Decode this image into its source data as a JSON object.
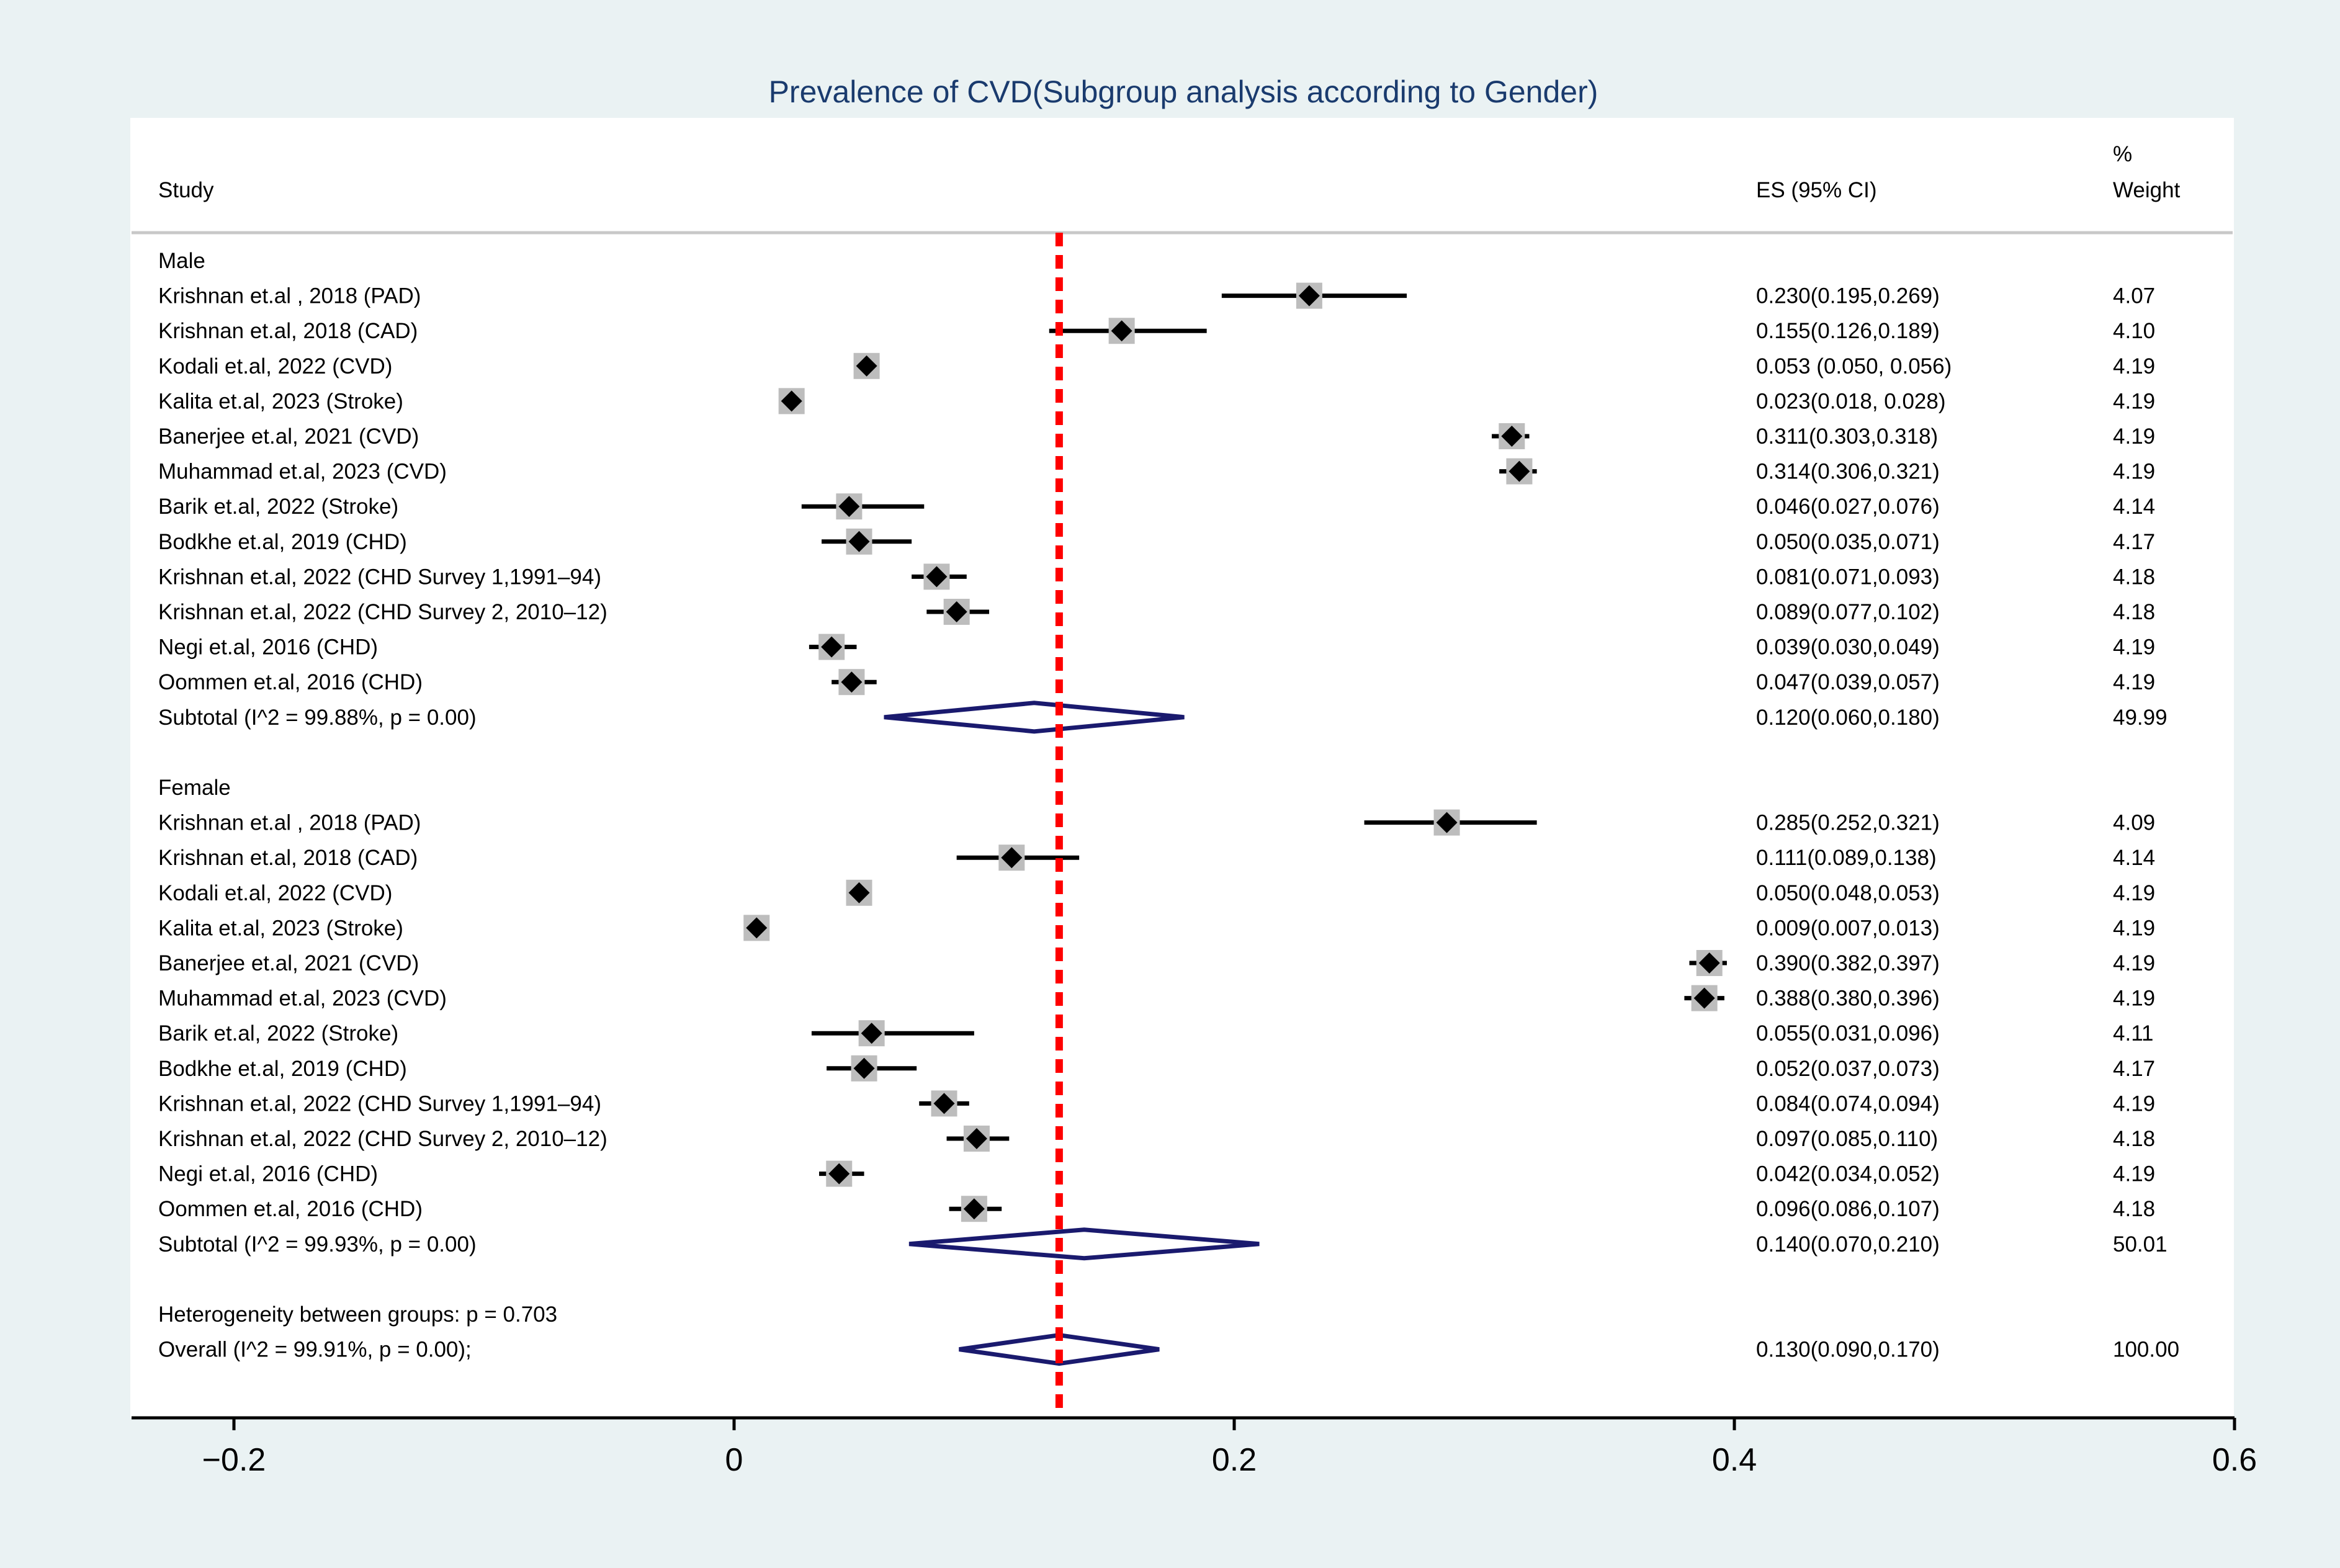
{
  "chart_data": {
    "type": "forest",
    "title": "Prevalence of CVD(Subgroup analysis according to Gender)",
    "headers": {
      "study": "Study",
      "es": "ES (95% CI)",
      "weight_line1": "%",
      "weight_line2": "Weight"
    },
    "xlim": [
      -0.24,
      0.6
    ],
    "xticks": [
      -0.2,
      0,
      0.2,
      0.4,
      0.6
    ],
    "xtick_labels": [
      "−0.2",
      "0",
      "0.2",
      "0.4",
      "0.6"
    ],
    "overall_line": 0.13,
    "groups": [
      {
        "name": "Male",
        "studies": [
          {
            "label": "Krishnan et.al , 2018 (PAD)",
            "es": 0.23,
            "lo": 0.195,
            "hi": 0.269,
            "es_text": "0.230(0.195,0.269)",
            "weight": "4.07"
          },
          {
            "label": "Krishnan et.al, 2018 (CAD)",
            "es": 0.155,
            "lo": 0.126,
            "hi": 0.189,
            "es_text": "0.155(0.126,0.189)",
            "weight": "4.10"
          },
          {
            "label": "Kodali et.al, 2022 (CVD)",
            "es": 0.053,
            "lo": 0.05,
            "hi": 0.056,
            "es_text": "0.053 (0.050, 0.056)",
            "weight": "4.19"
          },
          {
            "label": "Kalita et.al, 2023 (Stroke)",
            "es": 0.023,
            "lo": 0.018,
            "hi": 0.028,
            "es_text": "0.023(0.018, 0.028)",
            "weight": "4.19"
          },
          {
            "label": "Banerjee et.al, 2021 (CVD)",
            "es": 0.311,
            "lo": 0.303,
            "hi": 0.318,
            "es_text": "0.311(0.303,0.318)",
            "weight": "4.19"
          },
          {
            "label": "Muhammad et.al, 2023 (CVD)",
            "es": 0.314,
            "lo": 0.306,
            "hi": 0.321,
            "es_text": "0.314(0.306,0.321)",
            "weight": "4.19"
          },
          {
            "label": "Barik et.al, 2022 (Stroke)",
            "es": 0.046,
            "lo": 0.027,
            "hi": 0.076,
            "es_text": "0.046(0.027,0.076)",
            "weight": "4.14"
          },
          {
            "label": "Bodkhe et.al, 2019 (CHD)",
            "es": 0.05,
            "lo": 0.035,
            "hi": 0.071,
            "es_text": "0.050(0.035,0.071)",
            "weight": "4.17"
          },
          {
            "label": "Krishnan et.al, 2022 (CHD Survey 1,1991–94)",
            "es": 0.081,
            "lo": 0.071,
            "hi": 0.093,
            "es_text": "0.081(0.071,0.093)",
            "weight": "4.18"
          },
          {
            "label": "Krishnan et.al, 2022  (CHD Survey 2, 2010–12)",
            "es": 0.089,
            "lo": 0.077,
            "hi": 0.102,
            "es_text": "0.089(0.077,0.102)",
            "weight": "4.18"
          },
          {
            "label": "Negi et.al, 2016 (CHD)",
            "es": 0.039,
            "lo": 0.03,
            "hi": 0.049,
            "es_text": "0.039(0.030,0.049)",
            "weight": "4.19"
          },
          {
            "label": "Oommen et.al, 2016 (CHD)",
            "es": 0.047,
            "lo": 0.039,
            "hi": 0.057,
            "es_text": "0.047(0.039,0.057)",
            "weight": "4.19"
          }
        ],
        "subtotal": {
          "label": "Subtotal  (I^2 = 99.88%, p = 0.00)",
          "es": 0.12,
          "lo": 0.06,
          "hi": 0.18,
          "es_text": "0.120(0.060,0.180)",
          "weight": "49.99"
        }
      },
      {
        "name": "Female",
        "studies": [
          {
            "label": "Krishnan et.al , 2018 (PAD)",
            "es": 0.285,
            "lo": 0.252,
            "hi": 0.321,
            "es_text": "0.285(0.252,0.321)",
            "weight": "4.09"
          },
          {
            "label": "Krishnan et.al, 2018 (CAD)",
            "es": 0.111,
            "lo": 0.089,
            "hi": 0.138,
            "es_text": "0.111(0.089,0.138)",
            "weight": "4.14"
          },
          {
            "label": "Kodali et.al, 2022 (CVD)",
            "es": 0.05,
            "lo": 0.048,
            "hi": 0.053,
            "es_text": "0.050(0.048,0.053)",
            "weight": "4.19"
          },
          {
            "label": "Kalita et.al, 2023 (Stroke)",
            "es": 0.009,
            "lo": 0.007,
            "hi": 0.013,
            "es_text": "0.009(0.007,0.013)",
            "weight": "4.19"
          },
          {
            "label": "Banerjee et.al, 2021 (CVD)",
            "es": 0.39,
            "lo": 0.382,
            "hi": 0.397,
            "es_text": "0.390(0.382,0.397)",
            "weight": "4.19"
          },
          {
            "label": "Muhammad et.al, 2023 (CVD)",
            "es": 0.388,
            "lo": 0.38,
            "hi": 0.396,
            "es_text": "0.388(0.380,0.396)",
            "weight": "4.19"
          },
          {
            "label": "Barik et.al, 2022 (Stroke)",
            "es": 0.055,
            "lo": 0.031,
            "hi": 0.096,
            "es_text": "0.055(0.031,0.096)",
            "weight": "4.11"
          },
          {
            "label": "Bodkhe et.al, 2019 (CHD)",
            "es": 0.052,
            "lo": 0.037,
            "hi": 0.073,
            "es_text": "0.052(0.037,0.073)",
            "weight": "4.17"
          },
          {
            "label": "Krishnan et.al, 2022 (CHD Survey 1,1991–94)",
            "es": 0.084,
            "lo": 0.074,
            "hi": 0.094,
            "es_text": "0.084(0.074,0.094)",
            "weight": "4.19"
          },
          {
            "label": "Krishnan et.al, 2022  (CHD Survey 2, 2010–12)",
            "es": 0.097,
            "lo": 0.085,
            "hi": 0.11,
            "es_text": "0.097(0.085,0.110)",
            "weight": "4.18"
          },
          {
            "label": "Negi et.al, 2016 (CHD)",
            "es": 0.042,
            "lo": 0.034,
            "hi": 0.052,
            "es_text": "0.042(0.034,0.052)",
            "weight": "4.19"
          },
          {
            "label": "Oommen et.al, 2016 (CHD)",
            "es": 0.096,
            "lo": 0.086,
            "hi": 0.107,
            "es_text": "0.096(0.086,0.107)",
            "weight": "4.18"
          }
        ],
        "subtotal": {
          "label": "Subtotal  (I^2 = 99.93%, p = 0.00)",
          "es": 0.14,
          "lo": 0.07,
          "hi": 0.21,
          "es_text": "0.140(0.070,0.210)",
          "weight": "50.01"
        }
      }
    ],
    "heterogeneity_text": "Heterogeneity between groups: p = 0.703",
    "overall": {
      "label": "Overall  (I^2 = 99.91%, p = 0.00);",
      "es": 0.13,
      "lo": 0.09,
      "hi": 0.17,
      "es_text": "0.130(0.090,0.170)",
      "weight": "100.00"
    }
  },
  "colors": {
    "outer_background": "#eaf2f3",
    "plot_background": "#ffffff",
    "title": "#1a3b6e",
    "text": "#000000",
    "marker": "#000000",
    "weight_box": "#bdbdbd",
    "diamond": "#1a1a6e",
    "overall_line": "#ff0000",
    "divider": "#c8c8c8"
  }
}
